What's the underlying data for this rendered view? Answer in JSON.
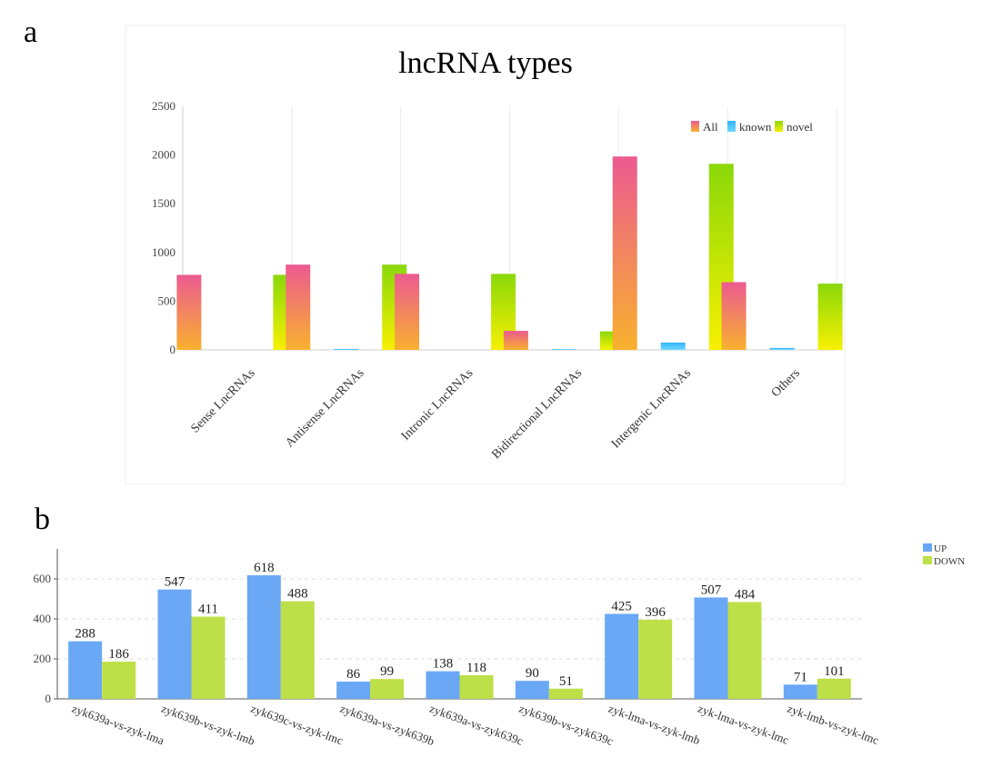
{
  "panels": {
    "a": {
      "letter": "a",
      "chart_data": {
        "type": "bar",
        "title": "lncRNA types",
        "xlabel": "",
        "ylabel": "",
        "ylim": [
          0,
          2500
        ],
        "yticks": [
          0,
          500,
          1000,
          1500,
          2000,
          2500
        ],
        "categories": [
          "Sense LncRNAs",
          "Antisense LncRNAs",
          "Intronic LncRNAs",
          "Bidirectional LncRNAs",
          "Intergenic LncRNAs",
          "Others"
        ],
        "series": [
          {
            "name": "All",
            "values": [
              770,
              875,
              780,
              195,
              1985,
              695
            ]
          },
          {
            "name": "known",
            "values": [
              0,
              10,
              0,
              8,
              75,
              20
            ]
          },
          {
            "name": "novel",
            "values": [
              770,
              875,
              780,
              190,
              1910,
              680
            ]
          }
        ],
        "legend": "top-right",
        "grid": "vertical"
      }
    },
    "b": {
      "letter": "b",
      "chart_data": {
        "type": "bar",
        "title": "",
        "xlabel": "",
        "ylabel": "",
        "ylim": [
          0,
          750
        ],
        "yticks": [
          0,
          200,
          400,
          600
        ],
        "categories": [
          "zyk639a-vs-zyk-lma",
          "zyk639b-vs-zyk-lmb",
          "zyk639c-vs-zyk-lmc",
          "zyk639a-vs-zyk639b",
          "zyk639a-vs-zyk639c",
          "zyk639b-vs-zyk639c",
          "zyk-lma-vs-zyk-lmb",
          "zyk-lma-vs-zyk-lmc",
          "zyk-lmb-vs-zyk-lmc"
        ],
        "series": [
          {
            "name": "UP",
            "values": [
              288,
              547,
              618,
              86,
              138,
              90,
              425,
              507,
              71
            ]
          },
          {
            "name": "DOWN",
            "values": [
              186,
              411,
              488,
              99,
              118,
              51,
              396,
              484,
              101
            ]
          }
        ],
        "legend": "top-right",
        "grid": "horizontal-dashed"
      }
    }
  },
  "colors": {
    "all_top": "#ec5a91",
    "all_bottom": "#f8b12e",
    "known_top": "#33b4ff",
    "known_bottom": "#6ed7ff",
    "novel_top": "#8ad80a",
    "novel_bottom": "#f7f000",
    "up": "#6aa7f5",
    "down": "#bddf47",
    "axis": "#999999",
    "grid": "#e2e2e2"
  }
}
